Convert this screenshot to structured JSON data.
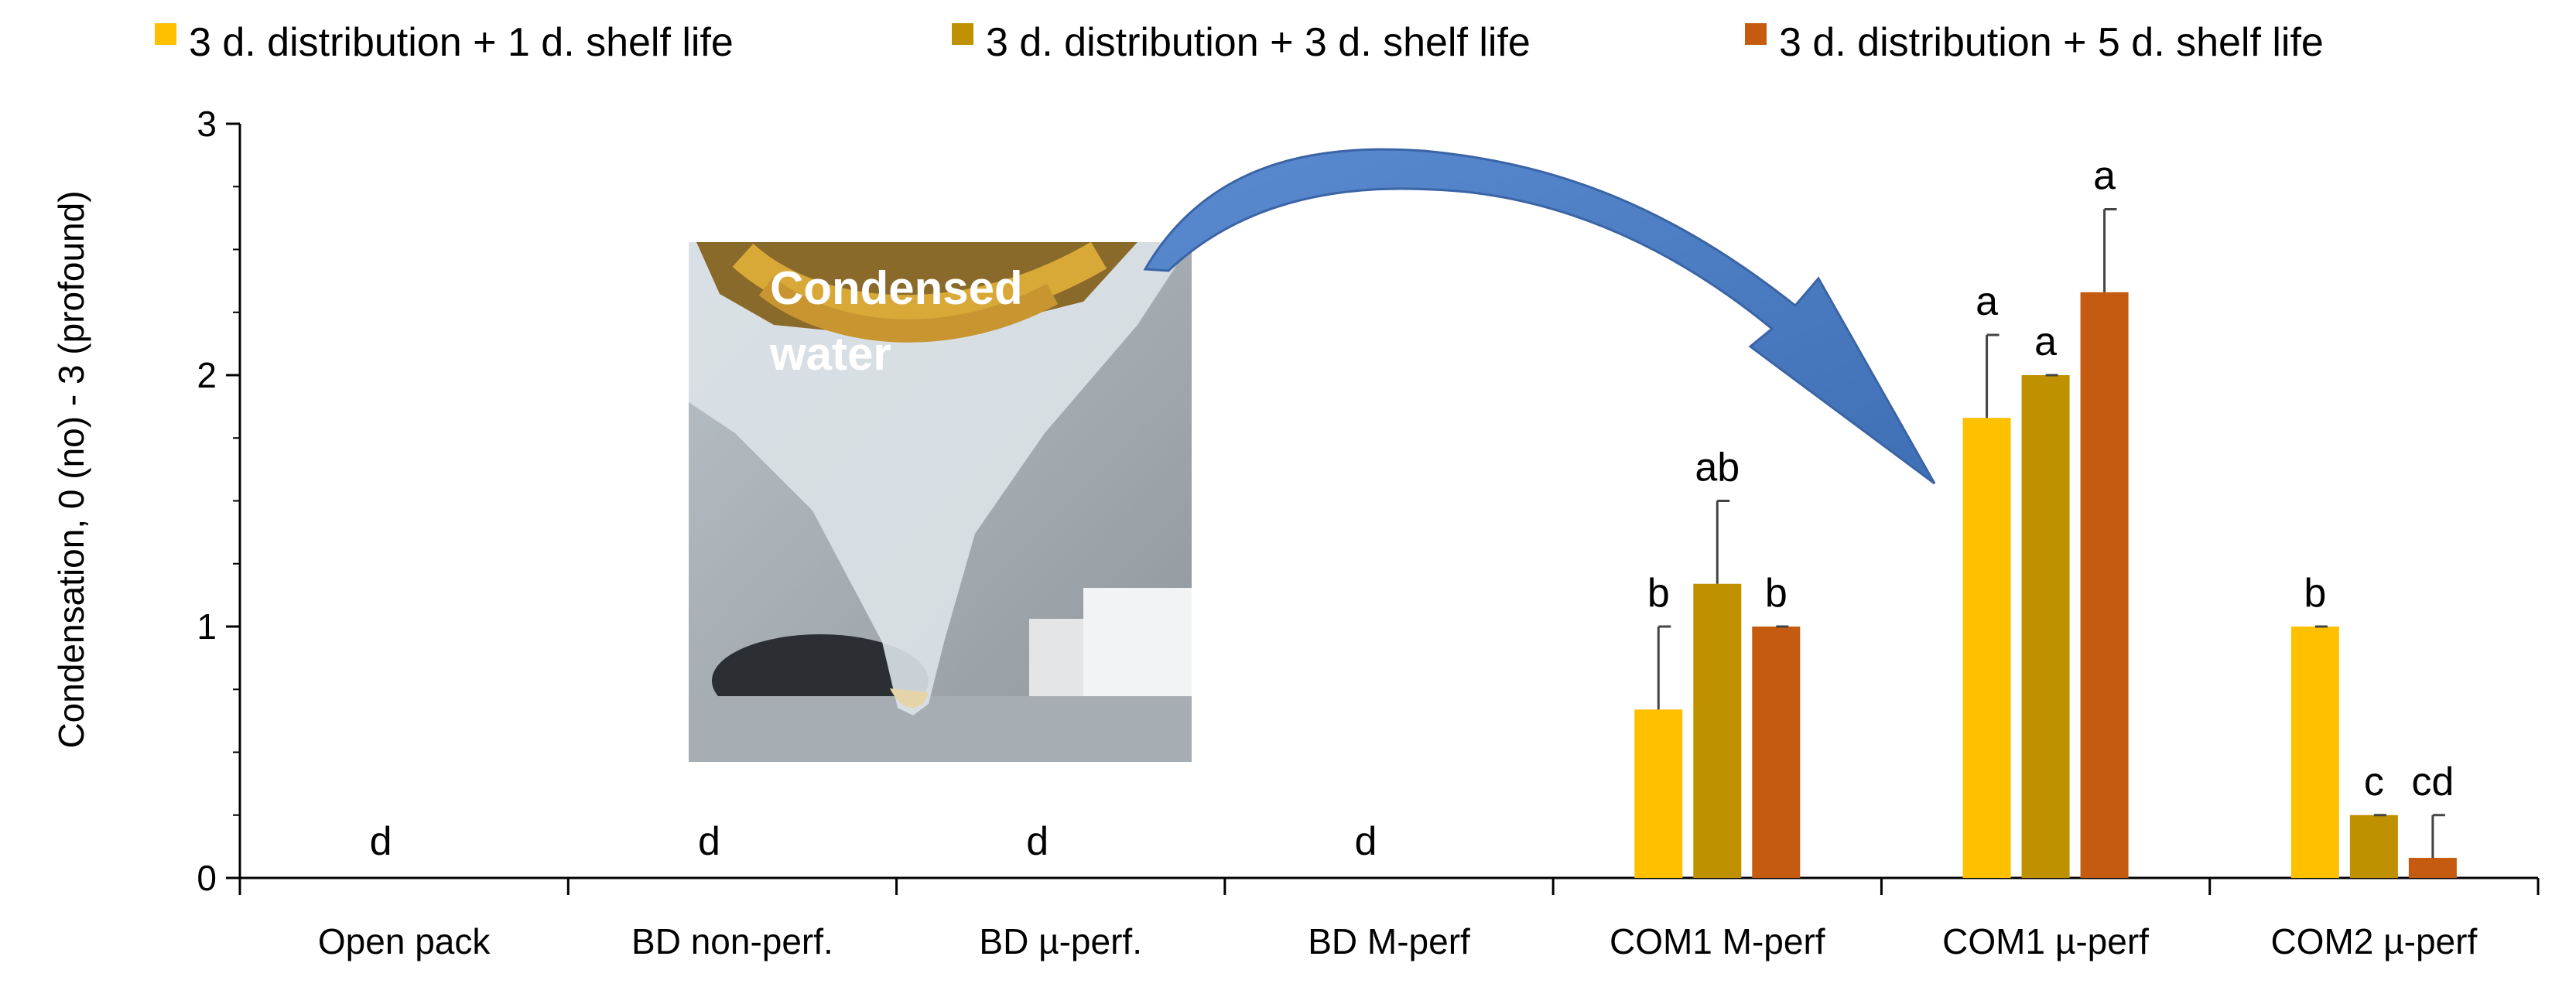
{
  "chart_data": {
    "type": "bar",
    "title": "",
    "xlabel": "",
    "ylabel": "Condensation, 0 (no) - 3 (profound)",
    "ylim": [
      0,
      3
    ],
    "yticks": [
      "0",
      "1",
      "2",
      "3"
    ],
    "grid": false,
    "legend_position": "top",
    "categories": [
      "Open pack",
      "BD non-perf.",
      "BD µ-perf.",
      "BD M-perf",
      "COM1 M-perf",
      "COM1 µ-perf",
      "COM2 µ-perf"
    ],
    "series": [
      {
        "name": "3 d. distribution + 1 d. shelf life",
        "color": "#FFC000",
        "values": [
          0,
          0,
          0,
          0,
          0.67,
          1.83,
          1.0
        ],
        "errors": [
          0,
          0,
          0,
          0,
          0.33,
          0.33,
          0
        ],
        "letters": [
          "d",
          "d",
          "d",
          "d",
          "b",
          "a",
          "b"
        ]
      },
      {
        "name": "3 d. distribution + 3 d. shelf life",
        "color": "#BF9000",
        "values": [
          0,
          0,
          0,
          0,
          1.17,
          2.0,
          0.25
        ],
        "errors": [
          0,
          0,
          0,
          0,
          0.33,
          0,
          0
        ],
        "letters": [
          "",
          "",
          "",
          "",
          "ab",
          "a",
          "c"
        ]
      },
      {
        "name": "3 d. distribution + 5 d. shelf life",
        "color": "#C55A11",
        "values": [
          0,
          0,
          0,
          0,
          1.0,
          2.33,
          0.08
        ],
        "errors": [
          0,
          0,
          0,
          0,
          0,
          0.33,
          0.17
        ],
        "letters": [
          "",
          "",
          "",
          "",
          "b",
          "a",
          "cd"
        ]
      }
    ],
    "annotation": {
      "photo_caption_line1": "Condensed",
      "photo_caption_line2": "water",
      "arrow_color": "#4F7FC0"
    }
  }
}
